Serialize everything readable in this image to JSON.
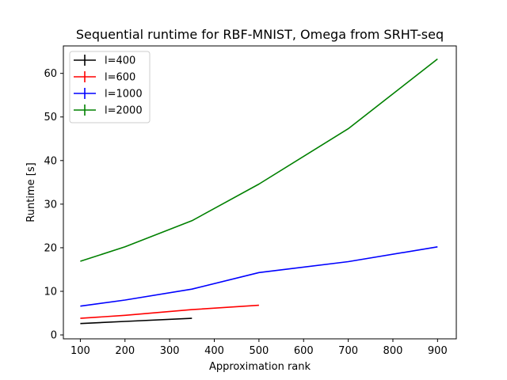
{
  "chart_data": {
    "type": "line",
    "title": "Sequential runtime for RBF-MNIST, Omega from SRHT-seq",
    "xlabel": "Approximation rank",
    "ylabel": "Runtime [s]",
    "xlim": [
      62,
      942
    ],
    "ylim": [
      -0.9,
      66.3
    ],
    "xticks": [
      100,
      200,
      300,
      400,
      500,
      600,
      700,
      800,
      900
    ],
    "yticks": [
      0,
      10,
      20,
      30,
      40,
      50,
      60
    ],
    "grid": false,
    "legend_position": "top-left",
    "series": [
      {
        "name": "l=400",
        "color": "#000000",
        "x": [
          100,
          200,
          350
        ],
        "y": [
          2.6,
          3.1,
          3.8
        ]
      },
      {
        "name": "l=600",
        "color": "#ff0000",
        "x": [
          100,
          200,
          350,
          500
        ],
        "y": [
          3.8,
          4.5,
          5.8,
          6.8
        ]
      },
      {
        "name": "l=1000",
        "color": "#0000ff",
        "x": [
          100,
          200,
          350,
          500,
          700,
          900
        ],
        "y": [
          6.6,
          8.0,
          10.5,
          14.3,
          16.8,
          20.2
        ]
      },
      {
        "name": "l=2000",
        "color": "#008000",
        "x": [
          100,
          200,
          350,
          500,
          700,
          900
        ],
        "y": [
          16.9,
          20.2,
          26.2,
          34.6,
          47.3,
          63.3
        ]
      }
    ]
  }
}
